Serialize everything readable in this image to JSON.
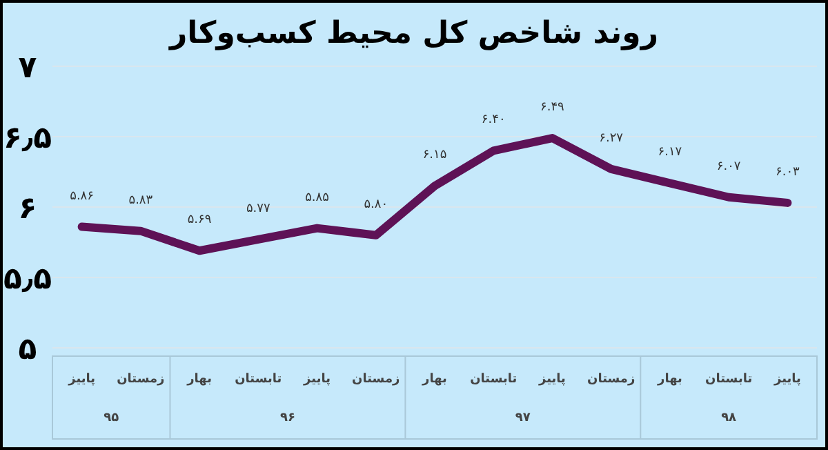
{
  "chart_data": {
    "type": "line",
    "title": "روند شاخص کل محیط کسب‌وکار",
    "categories": [
      "پاییز",
      "زمستان",
      "بهار",
      "تابستان",
      "پاییز",
      "زمستان",
      "بهار",
      "تابستان",
      "پاییز",
      "زمستان",
      "بهار",
      "تابستان",
      "پاییز"
    ],
    "series": [
      {
        "color": "#5e1256",
        "values": [
          5.86,
          5.83,
          5.69,
          5.77,
          5.85,
          5.8,
          6.15,
          6.4,
          6.49,
          6.27,
          6.17,
          6.07,
          6.03
        ],
        "value_labels": [
          "۵.۸۶",
          "۵.۸۳",
          "۵.۶۹",
          "۵.۷۷",
          "۵.۸۵",
          "۵.۸۰",
          "۶.۱۵",
          "۶.۴۰",
          "۶.۴۹",
          "۶.۲۷",
          "۶.۱۷",
          "۶.۰۷",
          "۶.۰۳"
        ]
      }
    ],
    "annotations": [
      "۹۵",
      "۹۶",
      "۹۷",
      "۹۸"
    ],
    "ylim": [
      5,
      7
    ],
    "yticks": [
      {
        "value": 5,
        "label": "۵"
      },
      {
        "value": 5.5,
        "label": "۵٫۵"
      },
      {
        "value": 6,
        "label": "۶"
      },
      {
        "value": 6.5,
        "label": "۶٫۵"
      },
      {
        "value": 7,
        "label": "۷"
      }
    ],
    "grid": "y",
    "marker": "none",
    "line_style": "solid"
  }
}
